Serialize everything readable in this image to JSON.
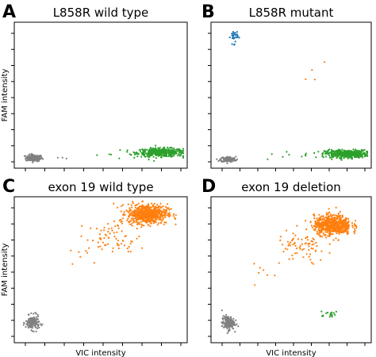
{
  "chart_data": [
    {
      "panel": "A",
      "type": "scatter",
      "title": "L858R wild type",
      "xlabel": "",
      "ylabel": "FAM intensity",
      "xlim": [
        0,
        100
      ],
      "ylim": [
        0,
        100
      ],
      "clusters": [
        {
          "color": "#808080",
          "center": [
            10,
            5
          ],
          "spread": [
            2.5,
            1.2
          ],
          "count": 140
        },
        {
          "color": "#2ca02c",
          "center": [
            86,
            9
          ],
          "spread": [
            7,
            1.5
          ],
          "count": 420
        },
        {
          "color": "#2ca02c",
          "center": [
            55,
            7
          ],
          "spread": [
            10,
            1
          ],
          "count": 6
        },
        {
          "color": "#808080",
          "center": [
            25,
            5
          ],
          "spread": [
            3,
            0.5
          ],
          "count": 3
        }
      ]
    },
    {
      "panel": "B",
      "type": "scatter",
      "title": "L858R mutant",
      "xlabel": "",
      "ylabel": "",
      "xlim": [
        0,
        100
      ],
      "ylim": [
        0,
        100
      ],
      "clusters": [
        {
          "color": "#808080",
          "center": [
            9,
            4
          ],
          "spread": [
            2.5,
            1
          ],
          "count": 140
        },
        {
          "color": "#2ca02c",
          "center": [
            86,
            8
          ],
          "spread": [
            7,
            1.4
          ],
          "count": 420
        },
        {
          "color": "#2ca02c",
          "center": [
            50,
            7
          ],
          "spread": [
            12,
            1
          ],
          "count": 8
        },
        {
          "color": "#1f77b4",
          "center": [
            13,
            92
          ],
          "spread": [
            1.2,
            2.5
          ],
          "count": 35
        },
        {
          "color": "#ff7f0e",
          "center": [
            66,
            65
          ],
          "spread": [
            5,
            6
          ],
          "count": 4
        }
      ]
    },
    {
      "panel": "C",
      "type": "scatter",
      "title": "exon 19 wild type",
      "xlabel": "VIC intensity",
      "ylabel": "FAM intensity",
      "xlim": [
        0,
        100
      ],
      "ylim": [
        0,
        100
      ],
      "clusters": [
        {
          "color": "#808080",
          "center": [
            9,
            12
          ],
          "spread": [
            2,
            2.5
          ],
          "count": 160
        },
        {
          "color": "#ff7f0e",
          "center": [
            78,
            90
          ],
          "spread": [
            6,
            3.5
          ],
          "count": 650
        },
        {
          "color": "#ff7f0e",
          "center": [
            58,
            72
          ],
          "spread": [
            8,
            6
          ],
          "count": 70
        },
        {
          "color": "#ff7f0e",
          "center": [
            38,
            58
          ],
          "spread": [
            5,
            5
          ],
          "count": 6
        }
      ]
    },
    {
      "panel": "D",
      "type": "scatter",
      "title": "exon 19 deletion",
      "xlabel": "VIC intensity",
      "ylabel": "",
      "xlim": [
        0,
        100
      ],
      "ylim": [
        0,
        100
      ],
      "clusters": [
        {
          "color": "#808080",
          "center": [
            9,
            12
          ],
          "spread": [
            2,
            2.5
          ],
          "count": 160
        },
        {
          "color": "#ff7f0e",
          "center": [
            77,
            82
          ],
          "spread": [
            6,
            3.5
          ],
          "count": 650
        },
        {
          "color": "#ff7f0e",
          "center": [
            57,
            66
          ],
          "spread": [
            8,
            6
          ],
          "count": 70
        },
        {
          "color": "#ff7f0e",
          "center": [
            35,
            48
          ],
          "spread": [
            6,
            6
          ],
          "count": 8
        },
        {
          "color": "#2ca02c",
          "center": [
            74,
            18
          ],
          "spread": [
            4,
            1
          ],
          "count": 18
        }
      ]
    }
  ]
}
